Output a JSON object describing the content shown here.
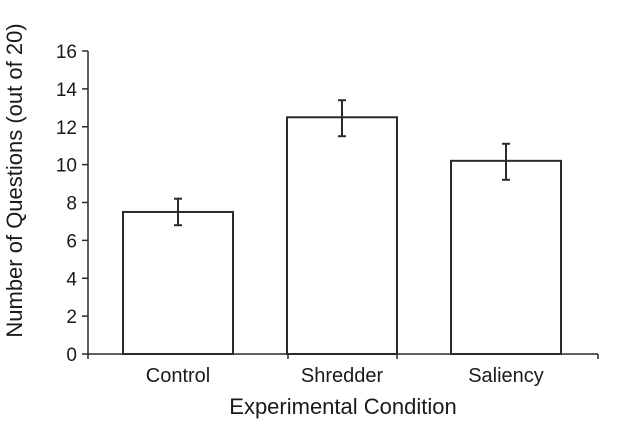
{
  "chart_data": {
    "type": "bar",
    "title": "",
    "xlabel": "Experimental Condition",
    "ylabel": "Number of Questions (out of 20)",
    "categories": [
      "Control",
      "Shredder",
      "Saliency"
    ],
    "values": [
      7.5,
      12.5,
      10.2
    ],
    "error_bars": [
      {
        "low": 6.8,
        "high": 8.2
      },
      {
        "low": 11.5,
        "high": 13.4
      },
      {
        "low": 9.2,
        "high": 11.1
      }
    ],
    "ylim": [
      0,
      16
    ],
    "yticks": [
      0,
      2,
      4,
      6,
      8,
      10,
      12,
      14,
      16
    ],
    "grid": false,
    "legend": "none",
    "colors": {
      "bar_fill": "#ffffff",
      "bar_stroke": "#2b2b2b",
      "axis": "#2b2b2b",
      "error_bar": "#2b2b2b"
    }
  }
}
